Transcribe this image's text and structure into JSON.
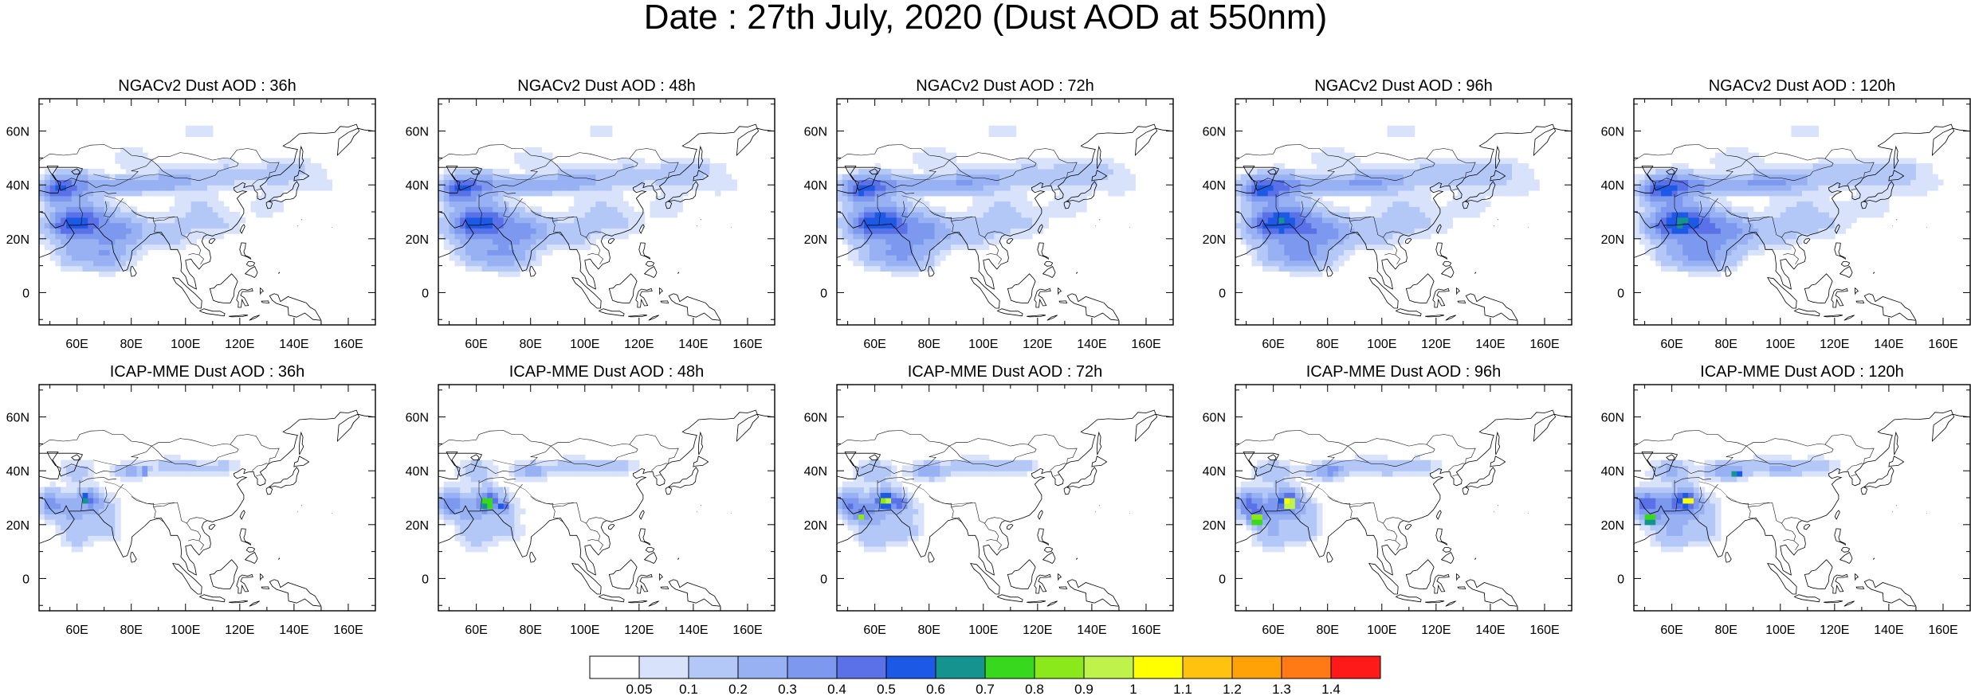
{
  "figure": {
    "title": "Date : 27th July, 2020 (Dust AOD at 550nm)"
  },
  "panels": [
    {
      "title": "NGACv2 Dust AOD : 36h"
    },
    {
      "title": "NGACv2 Dust AOD : 48h"
    },
    {
      "title": "NGACv2 Dust AOD : 72h"
    },
    {
      "title": "NGACv2 Dust AOD : 96h"
    },
    {
      "title": "NGACv2 Dust AOD : 120h"
    },
    {
      "title": "ICAP-MME Dust AOD : 36h"
    },
    {
      "title": "ICAP-MME Dust AOD : 48h"
    },
    {
      "title": "ICAP-MME Dust AOD : 72h"
    },
    {
      "title": "ICAP-MME Dust AOD : 96h"
    },
    {
      "title": "ICAP-MME Dust AOD : 120h"
    }
  ],
  "axes": {
    "lon_labels": [
      "60E",
      "80E",
      "100E",
      "120E",
      "140E",
      "160E"
    ],
    "lat_labels": [
      "60N",
      "40N",
      "20N",
      "0"
    ]
  },
  "colorbar": {
    "labels": [
      "0.05",
      "0.1",
      "0.2",
      "0.3",
      "0.4",
      "0.5",
      "0.6",
      "0.7",
      "0.8",
      "0.9",
      "1",
      "1.1",
      "1.2",
      "1.3",
      "1.4"
    ],
    "colors": [
      "#ffffff",
      "#d8e2fb",
      "#b4c8f7",
      "#98b1f3",
      "#7d98ef",
      "#5a71e8",
      "#1c5ae6",
      "#14938f",
      "#38d81f",
      "#8be81a",
      "#bff24a",
      "#ffff00",
      "#ffc20e",
      "#ffa208",
      "#ff7a14",
      "#ff1a1a"
    ]
  }
}
